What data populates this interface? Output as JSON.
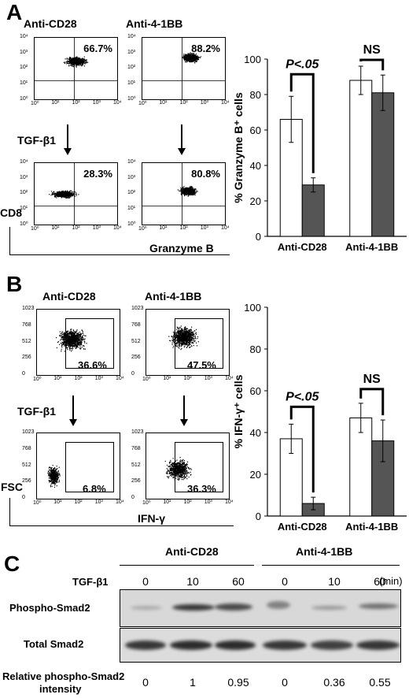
{
  "panelA": {
    "letter": "A",
    "col1": "Anti-CD28",
    "col2": "Anti-4-1BB",
    "pct": [
      "66.7%",
      "88.2%",
      "28.3%",
      "80.8%"
    ],
    "treatment": "TGF-β1",
    "yaxis": "CD8",
    "xaxis": "Granzyme B",
    "ticks_y": [
      "10⁴",
      "10³",
      "10²",
      "10¹",
      "10⁰"
    ],
    "ticks_x": [
      "10⁰",
      "10¹",
      "10²",
      "10³",
      "10⁴"
    ]
  },
  "panelB": {
    "letter": "B",
    "col1": "Anti-CD28",
    "col2": "Anti-4-1BB",
    "pct": [
      "36.6%",
      "47.5%",
      "6.8%",
      "36.3%"
    ],
    "treatment": "TGF-β1",
    "yaxis": "FSC",
    "xaxis": "IFN-γ",
    "ticks_y": [
      "1023",
      "768",
      "512",
      "256",
      "0"
    ],
    "ticks_x": [
      "10⁰",
      "10¹",
      "10²",
      "10³",
      "10⁴"
    ]
  },
  "chart_data": [
    {
      "type": "bar",
      "ylabel": "% Granzyme B⁺ cells",
      "categories": [
        "Anti-CD28",
        "Anti-4-1BB"
      ],
      "series": [
        {
          "values": [
            66,
            88
          ],
          "errors": [
            13,
            8
          ],
          "color": "#ffffff"
        },
        {
          "values": [
            29,
            81
          ],
          "errors": [
            4,
            10
          ],
          "color": "#555555"
        }
      ],
      "ylim": [
        0,
        100
      ],
      "yticks": [
        "0",
        "20",
        "40",
        "60",
        "80",
        "100"
      ],
      "annotations": [
        "P<.05",
        "NS"
      ]
    },
    {
      "type": "bar",
      "ylabel": "% IFN-γ⁺ cells",
      "categories": [
        "Anti-CD28",
        "Anti-4-1BB"
      ],
      "series": [
        {
          "values": [
            37,
            47
          ],
          "errors": [
            7,
            7
          ],
          "color": "#ffffff"
        },
        {
          "values": [
            6,
            36
          ],
          "errors": [
            3,
            10
          ],
          "color": "#555555"
        }
      ],
      "ylim": [
        0,
        100
      ],
      "yticks": [
        "0",
        "20",
        "40",
        "60",
        "80",
        "100"
      ],
      "annotations": [
        "P<.05",
        "NS"
      ]
    }
  ],
  "panelC": {
    "letter": "C",
    "group1": "Anti-CD28",
    "group2": "Anti-4-1BB",
    "tgf_label": "TGF-β1",
    "times": [
      "0",
      "10",
      "60",
      "0",
      "10",
      "60"
    ],
    "min_label": "(min)",
    "row1": "Phospho-Smad2",
    "row2": "Total Smad2",
    "rel_label_1": "Relative phospho-Smad2",
    "rel_label_2": "intensity",
    "rel_values": [
      "0",
      "1",
      "0.95",
      "0",
      "0.36",
      "0.55"
    ]
  }
}
